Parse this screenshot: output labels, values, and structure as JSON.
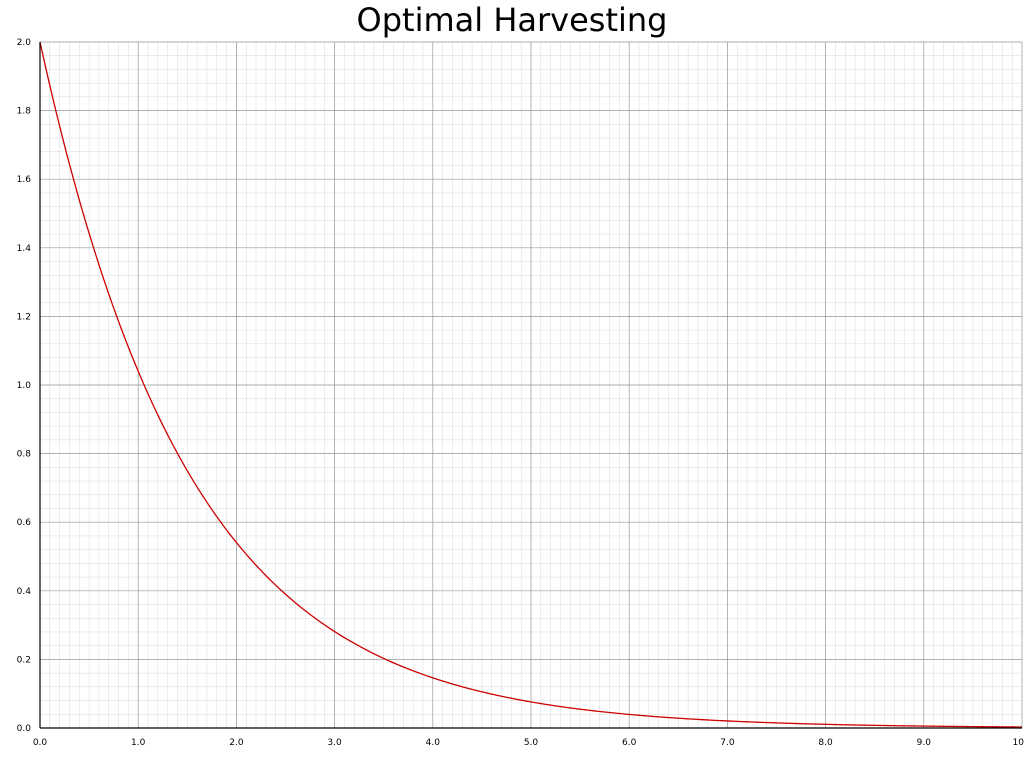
{
  "chart_data": {
    "type": "line",
    "title": "Optimal Harvesting",
    "xlabel": "",
    "ylabel": "",
    "xlim": [
      0,
      10
    ],
    "ylim": [
      0,
      2
    ],
    "x_ticks": [
      "0.0",
      "1.0",
      "2.0",
      "3.0",
      "4.0",
      "5.0",
      "6.0",
      "7.0",
      "8.0",
      "9.0",
      "10"
    ],
    "y_ticks": [
      "0.0",
      "0.2",
      "0.4",
      "0.6",
      "0.8",
      "1.0",
      "1.2",
      "1.4",
      "1.6",
      "1.8",
      "2.0"
    ],
    "grid": true,
    "legend": "none",
    "colors": {
      "line": "#cc0000"
    },
    "series": [
      {
        "x": [
          0,
          0.25,
          0.5,
          0.75,
          1.0,
          1.25,
          1.5,
          1.75,
          2.0,
          2.25,
          2.5,
          2.75,
          3.0,
          3.5,
          4.0,
          4.5,
          5.0,
          5.5,
          6.0,
          6.5,
          7.0,
          7.5,
          8.0,
          8.5,
          9.0,
          9.5,
          10.0
        ],
        "y": [
          2.0,
          1.7,
          1.44,
          1.23,
          1.04,
          0.89,
          0.75,
          0.64,
          0.54,
          0.46,
          0.39,
          0.34,
          0.29,
          0.21,
          0.15,
          0.11,
          0.08,
          0.06,
          0.04,
          0.03,
          0.02,
          0.015,
          0.01,
          0.008,
          0.006,
          0.004,
          0.003
        ]
      }
    ]
  }
}
